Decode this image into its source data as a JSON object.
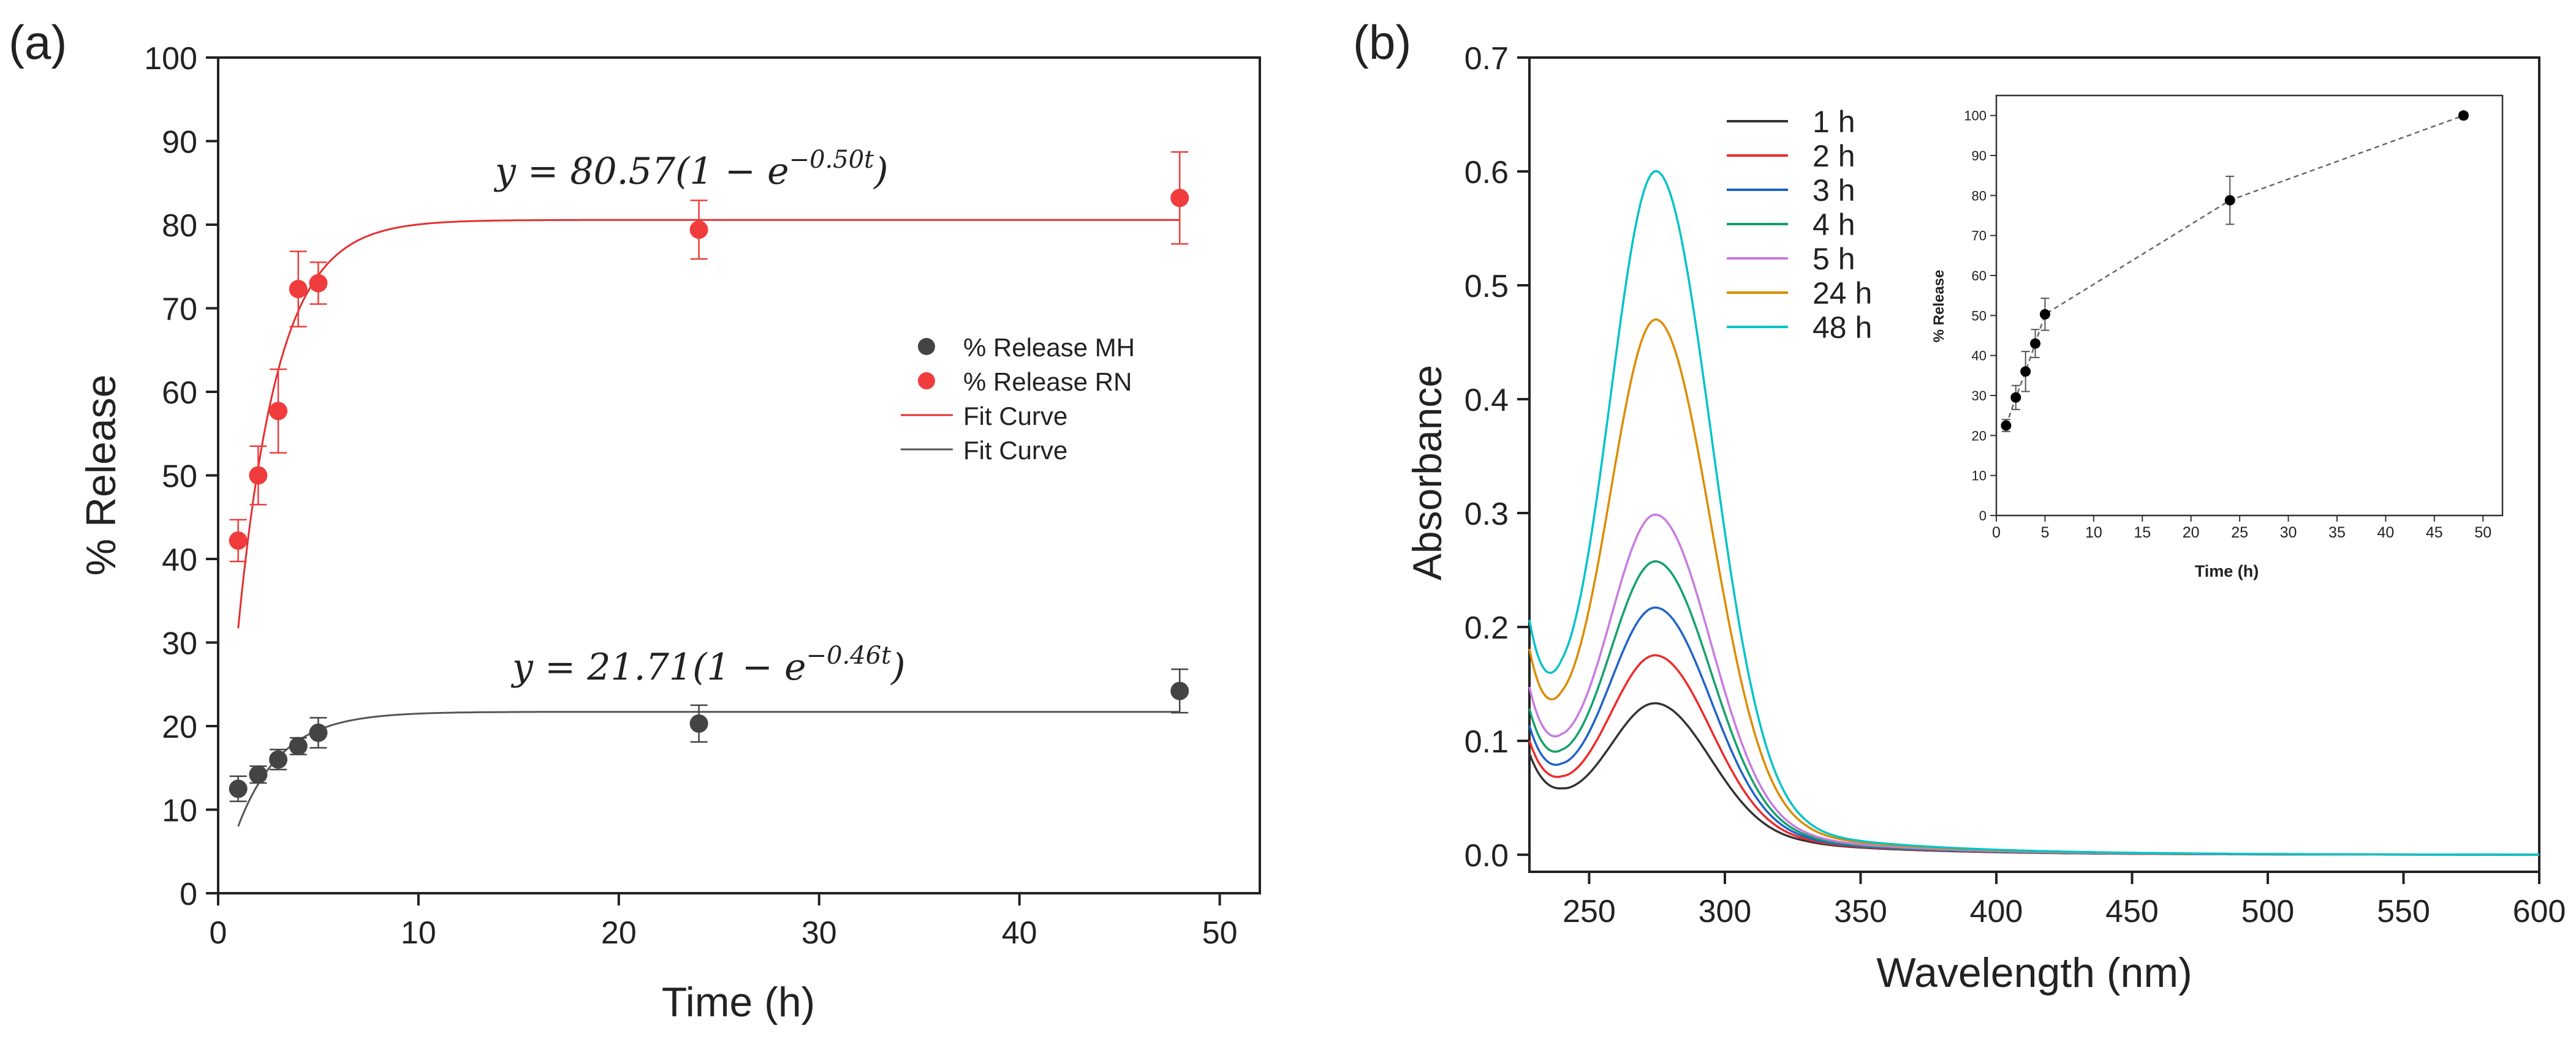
{
  "panels": {
    "a_label": "(a)",
    "b_label": "(b)"
  },
  "chart_data": [
    {
      "id": "panel-a",
      "type": "scatter",
      "title": "",
      "xlabel": "Time (h)",
      "ylabel": "% Release",
      "xlim": [
        0,
        52
      ],
      "ylim": [
        0,
        100
      ],
      "xticks": [
        0,
        10,
        20,
        30,
        40,
        50
      ],
      "yticks": [
        0,
        10,
        20,
        30,
        40,
        50,
        60,
        70,
        80,
        90,
        100
      ],
      "grid": false,
      "legend_position": "right",
      "series": [
        {
          "name": "% Release MH",
          "color": "#444444",
          "x": [
            1,
            2,
            3,
            4,
            5,
            24,
            48
          ],
          "y": [
            12.5,
            14.2,
            16.0,
            17.6,
            19.2,
            20.3,
            24.2
          ],
          "err": [
            1.5,
            1.0,
            1.2,
            1.0,
            1.8,
            2.2,
            2.6
          ]
        },
        {
          "name": "% Release RN",
          "color": "#f03c3c",
          "x": [
            1,
            2,
            3,
            4,
            5,
            24,
            48
          ],
          "y": [
            42.2,
            50.0,
            57.7,
            72.3,
            73.0,
            79.4,
            83.2
          ],
          "err": [
            2.5,
            3.5,
            5.0,
            4.5,
            2.5,
            3.5,
            5.5
          ]
        }
      ],
      "fits": [
        {
          "name": "Fit Curve",
          "color": "#e23030",
          "A": 80.57,
          "k": 0.5,
          "x_from": 1,
          "x_to": 48,
          "equation": "y = 80.57(1 − e^(−0.50t))"
        },
        {
          "name": "Fit Curve",
          "color": "#555555",
          "A": 21.71,
          "k": 0.46,
          "x_from": 1,
          "x_to": 48,
          "equation": "y = 21.71(1 − e^(−0.46t))"
        }
      ],
      "equations": {
        "rn": {
          "lhs": "y = 80.57(1 − e",
          "exp": "−0.50t",
          "rhs": ")"
        },
        "mh": {
          "lhs": "y = 21.71(1 − e",
          "exp": "−0.46t",
          "rhs": ")"
        }
      }
    },
    {
      "id": "panel-b",
      "type": "line",
      "title": "",
      "xlabel": "Wavelength (nm)",
      "ylabel": "Absorbance",
      "xlim": [
        228,
        600
      ],
      "ylim": [
        -0.015,
        0.7
      ],
      "xticks": [
        250,
        300,
        350,
        400,
        450,
        500,
        550,
        600
      ],
      "yticks": [
        0.0,
        0.1,
        0.2,
        0.3,
        0.4,
        0.5,
        0.6,
        0.7
      ],
      "ytick_labels": [
        "0.0",
        "0.1",
        "0.2",
        "0.3",
        "0.4",
        "0.5",
        "0.6",
        "0.7"
      ],
      "grid": false,
      "legend_position": "top-left",
      "peak_nm": 275,
      "series": [
        {
          "name": "1 h",
          "color": "#333333",
          "peak": 0.142,
          "base_start": 0.082,
          "min_val": 0.07
        },
        {
          "name": "2 h",
          "color": "#ee2b2b",
          "peak": 0.186,
          "base_start": 0.092,
          "min_val": 0.08
        },
        {
          "name": "3 h",
          "color": "#1f63c8",
          "peak": 0.23,
          "base_start": 0.104,
          "min_val": 0.091
        },
        {
          "name": "4 h",
          "color": "#13a06a",
          "peak": 0.273,
          "base_start": 0.118,
          "min_val": 0.104
        },
        {
          "name": "5 h",
          "color": "#c77be0",
          "peak": 0.317,
          "base_start": 0.136,
          "min_val": 0.12
        },
        {
          "name": "24 h",
          "color": "#dc8c00",
          "peak": 0.494,
          "base_start": 0.165,
          "min_val": 0.15
        },
        {
          "name": "48 h",
          "color": "#00c3c8",
          "peak": 0.628,
          "base_start": 0.187,
          "min_val": 0.17
        }
      ]
    },
    {
      "id": "panel-b-inset",
      "type": "scatter",
      "title": "",
      "xlabel": "Time (h)",
      "ylabel": "% Release",
      "xlim": [
        0,
        52
      ],
      "ylim": [
        0,
        105
      ],
      "xticks": [
        0,
        5,
        10,
        15,
        20,
        25,
        30,
        35,
        40,
        45,
        50
      ],
      "yticks": [
        0,
        10,
        20,
        30,
        40,
        50,
        60,
        70,
        80,
        90,
        100
      ],
      "grid": false,
      "series": [
        {
          "name": "% Release",
          "color": "#000000",
          "line": "dashed",
          "x": [
            1,
            2,
            3,
            4,
            5,
            24,
            48
          ],
          "y": [
            22.5,
            29.5,
            36.0,
            43.0,
            50.3,
            78.8,
            100.0
          ],
          "err": [
            1.5,
            3.0,
            5.0,
            3.5,
            4.0,
            6.0,
            0.8
          ]
        }
      ]
    }
  ]
}
